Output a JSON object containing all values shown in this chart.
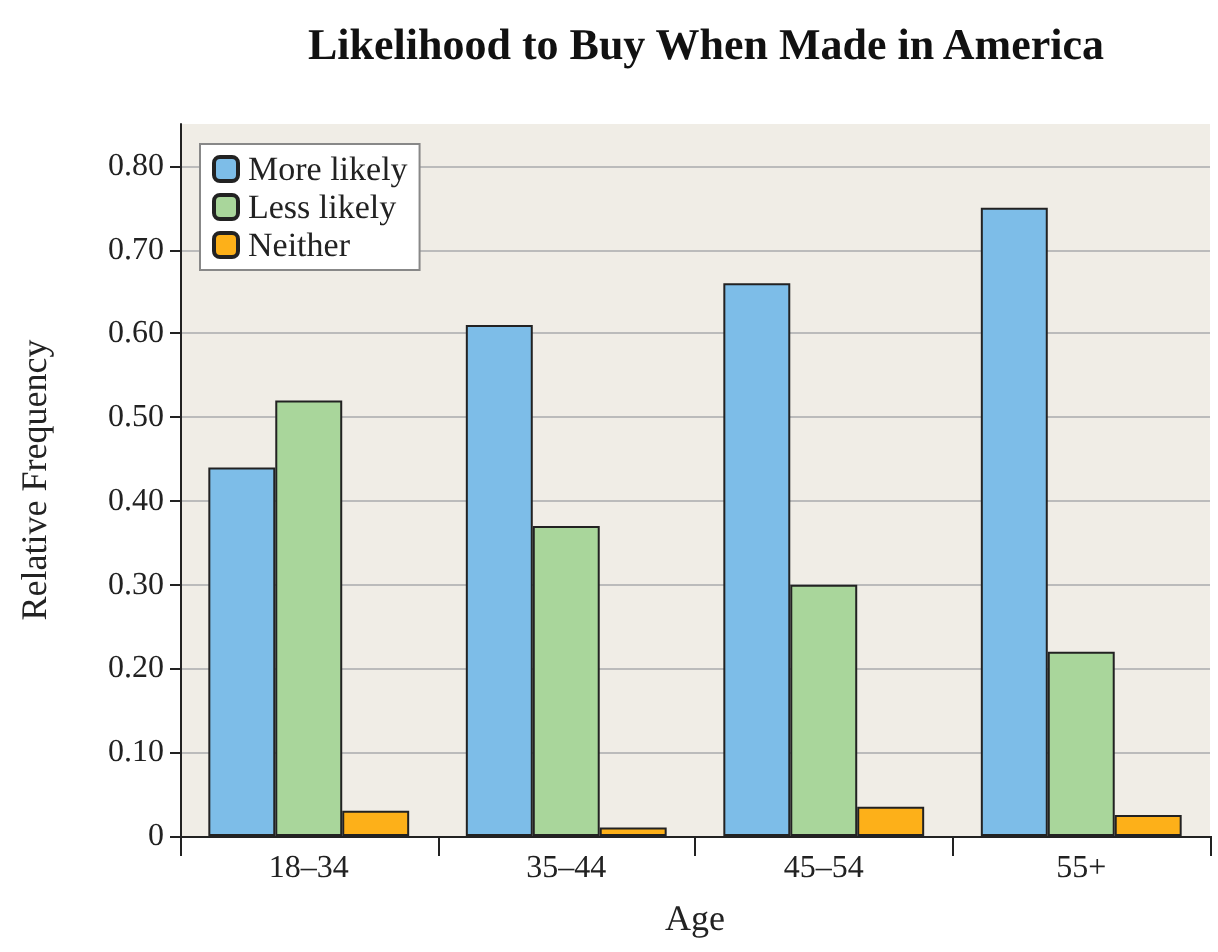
{
  "chart_data": {
    "type": "bar",
    "title": "Likelihood to Buy When Made in America",
    "xlabel": "Age",
    "ylabel": "Relative Frequency",
    "categories": [
      "18–34",
      "35–44",
      "45–54",
      "55+"
    ],
    "series": [
      {
        "name": "More likely",
        "color": "#7dbde8",
        "values": [
          0.44,
          0.61,
          0.66,
          0.75
        ]
      },
      {
        "name": "Less likely",
        "color": "#a9d69b",
        "values": [
          0.52,
          0.37,
          0.3,
          0.22
        ]
      },
      {
        "name": "Neither",
        "color": "#fdb019",
        "values": [
          0.03,
          0.01,
          0.035,
          0.025
        ]
      }
    ],
    "ylim": [
      0,
      0.85
    ],
    "yticks": [
      0,
      {
        "value": 0.1,
        "label": "0.10"
      },
      {
        "value": 0.2,
        "label": "0.20"
      },
      {
        "value": 0.3,
        "label": "0.30"
      },
      {
        "value": 0.4,
        "label": "0.40"
      },
      {
        "value": 0.5,
        "label": "0.50"
      },
      {
        "value": 0.6,
        "label": "0.60"
      },
      {
        "value": 0.7,
        "label": "0.70"
      },
      {
        "value": 0.8,
        "label": "0.80"
      }
    ],
    "grid": "y",
    "legend": "top left"
  }
}
